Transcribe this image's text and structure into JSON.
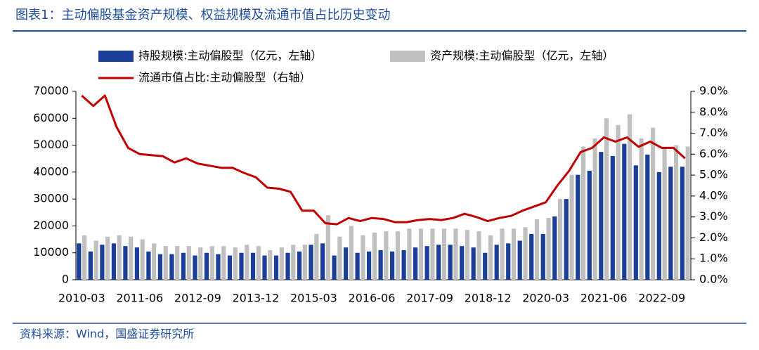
{
  "chart_data": {
    "type": "bar_line",
    "title": "图表1：主动偏股基金资产规模、权益规模及流通市值占比历史变动",
    "source": "资料来源：Wind，国盛证券研究所",
    "categories": [
      "2010-03",
      null,
      null,
      null,
      null,
      "2011-06",
      null,
      null,
      null,
      null,
      "2012-09",
      null,
      null,
      null,
      null,
      "2013-12",
      null,
      null,
      null,
      null,
      "2015-03",
      null,
      null,
      null,
      null,
      "2016-06",
      null,
      null,
      null,
      null,
      "2017-09",
      null,
      null,
      null,
      null,
      "2018-12",
      null,
      null,
      null,
      null,
      "2020-03",
      null,
      null,
      null,
      null,
      "2021-06",
      null,
      null,
      null,
      null,
      "2022-09",
      null,
      null
    ],
    "series": [
      {
        "name": "持股规模:主动偏股型（亿元，左轴）",
        "color": "#1b3f99",
        "kind": "bar",
        "values": [
          13500,
          10500,
          13000,
          13500,
          12500,
          12000,
          10500,
          9500,
          9500,
          10000,
          9000,
          10000,
          9500,
          9000,
          10000,
          10000,
          9000,
          9000,
          10000,
          10500,
          13000,
          13500,
          9000,
          12000,
          10000,
          10500,
          11000,
          10500,
          11000,
          12000,
          12500,
          13000,
          13000,
          12500,
          12000,
          10000,
          13000,
          13500,
          14500,
          17000,
          17000,
          23500,
          30000,
          39000,
          40500,
          47500,
          46000,
          50500,
          42500,
          46500,
          40000,
          42000,
          42000
        ]
      },
      {
        "name": "资产规模:主动偏股型（亿元，左轴）",
        "color": "#c0c0c0",
        "kind": "bar",
        "values": [
          16500,
          14500,
          16000,
          16500,
          16000,
          15000,
          13500,
          12500,
          12500,
          12500,
          12000,
          12500,
          12500,
          12000,
          13000,
          12500,
          11000,
          12000,
          13000,
          13000,
          17000,
          24000,
          16000,
          20000,
          16500,
          17500,
          18000,
          18000,
          19000,
          19000,
          19000,
          19000,
          19000,
          18500,
          18000,
          16500,
          19000,
          19000,
          19500,
          22500,
          23000,
          30000,
          39000,
          49500,
          52500,
          60000,
          57500,
          61500,
          52500,
          56500,
          49000,
          50000,
          49500
        ]
      },
      {
        "name": "流通市值占比:主动偏股型（右轴）",
        "color": "#c00000",
        "kind": "line",
        "axis": "y2",
        "values": [
          8.8,
          8.3,
          8.8,
          7.3,
          6.3,
          6.0,
          5.95,
          5.9,
          5.6,
          5.8,
          5.55,
          5.45,
          5.35,
          5.35,
          5.1,
          4.9,
          4.4,
          4.35,
          4.2,
          3.3,
          3.3,
          2.7,
          2.65,
          2.95,
          2.8,
          2.95,
          2.9,
          2.75,
          2.75,
          2.85,
          2.9,
          2.85,
          2.95,
          3.15,
          3.0,
          2.8,
          2.95,
          3.05,
          3.3,
          3.5,
          3.7,
          4.5,
          5.2,
          6.1,
          6.3,
          6.8,
          6.6,
          6.8,
          6.35,
          6.6,
          6.3,
          6.3,
          5.8
        ]
      }
    ],
    "ylim": [
      0,
      70000
    ],
    "yticks": [
      0,
      10000,
      20000,
      30000,
      40000,
      50000,
      60000,
      70000
    ],
    "y2lim": [
      0,
      9
    ],
    "y2ticks": [
      {
        "value": 0,
        "label": "0.0%"
      },
      {
        "value": 1,
        "label": "1.0%"
      },
      {
        "value": 2,
        "label": "2.0%"
      },
      {
        "value": 3,
        "label": "3.0%"
      },
      {
        "value": 4,
        "label": "4.0%"
      },
      {
        "value": 5,
        "label": "5.0%"
      },
      {
        "value": 6,
        "label": "6.0%"
      },
      {
        "value": 7,
        "label": "7.0%"
      },
      {
        "value": 8,
        "label": "8.0%"
      },
      {
        "value": 9,
        "label": "9.0%"
      }
    ]
  }
}
